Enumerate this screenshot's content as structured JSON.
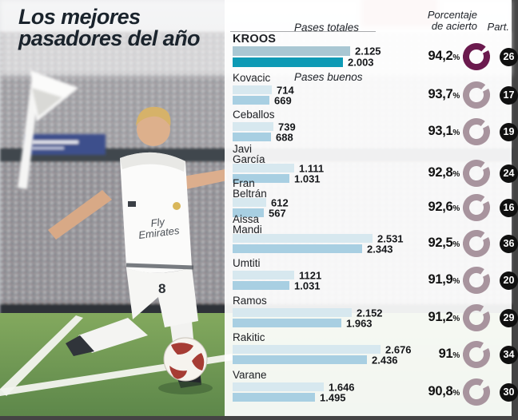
{
  "title": {
    "line1": "Los mejores",
    "line2": "pasadores del año"
  },
  "headers": {
    "pases_totales": "Pases totales",
    "pases_buenos": "Pases buenos",
    "porcentaje_line1": "Porcentaje",
    "porcentaje_line2": "de acierto",
    "part": "Part."
  },
  "photo": {
    "player_number": "8",
    "shirt_sponsor_line1": "Fly",
    "shirt_sponsor_line2": "Emirates"
  },
  "colors": {
    "bar_total_highlight": "#a9c7d3",
    "bar_good_highlight": "#0d9ab5",
    "bar_total": "#d7e8ef",
    "bar_good": "#a8cfe2",
    "ring_highlight": "#6b1a4e",
    "ring_normal": "#a8949e",
    "part_badge": "#101010",
    "title_text": "#1a232c"
  },
  "chart_data": {
    "type": "bar",
    "title": "Los mejores pasadores del año",
    "series_labels": [
      "Pases totales",
      "Pases buenos"
    ],
    "pct_header": "Porcentaje de acierto",
    "part_header": "Part.",
    "xlim": [
      0,
      2700
    ],
    "players": [
      {
        "name_lines": [
          "KROOS"
        ],
        "totales": 2125,
        "buenos": 2003,
        "totales_label": "2.125",
        "buenos_label": "2.003",
        "pct": 94.2,
        "pct_label": "94,2",
        "part": "26",
        "highlight": true
      },
      {
        "name_lines": [
          "Kovacic"
        ],
        "totales": 714,
        "buenos": 669,
        "totales_label": "714",
        "buenos_label": "669",
        "pct": 93.7,
        "pct_label": "93,7",
        "part": "17",
        "highlight": false
      },
      {
        "name_lines": [
          "Ceballos"
        ],
        "totales": 739,
        "buenos": 688,
        "totales_label": "739",
        "buenos_label": "688",
        "pct": 93.1,
        "pct_label": "93,1",
        "part": "19",
        "highlight": false
      },
      {
        "name_lines": [
          "Javi",
          "García"
        ],
        "totales": 1111,
        "buenos": 1031,
        "totales_label": "1.111",
        "buenos_label": "1.031",
        "pct": 92.8,
        "pct_label": "92,8",
        "part": "24",
        "highlight": false
      },
      {
        "name_lines": [
          "Fran",
          "Beltrán"
        ],
        "totales": 612,
        "buenos": 567,
        "totales_label": "612",
        "buenos_label": "567",
        "pct": 92.6,
        "pct_label": "92,6",
        "part": "16",
        "highlight": false
      },
      {
        "name_lines": [
          "Aissa",
          "Mandi"
        ],
        "totales": 2531,
        "buenos": 2343,
        "totales_label": "2.531",
        "buenos_label": "2.343",
        "pct": 92.5,
        "pct_label": "92,5",
        "part": "36",
        "highlight": false
      },
      {
        "name_lines": [
          "Umtiti"
        ],
        "totales": 1121,
        "buenos": 1031,
        "totales_label": "1121",
        "buenos_label": "1.031",
        "pct": 91.9,
        "pct_label": "91,9",
        "part": "20",
        "highlight": false
      },
      {
        "name_lines": [
          "Ramos"
        ],
        "totales": 2152,
        "buenos": 1963,
        "totales_label": "2.152",
        "buenos_label": "1.963",
        "pct": 91.2,
        "pct_label": "91,2",
        "part": "29",
        "highlight": false
      },
      {
        "name_lines": [
          "Rakitic"
        ],
        "totales": 2676,
        "buenos": 2436,
        "totales_label": "2.676",
        "buenos_label": "2.436",
        "pct": 91.0,
        "pct_label": "91",
        "part": "34",
        "highlight": false
      },
      {
        "name_lines": [
          "Varane"
        ],
        "totales": 1646,
        "buenos": 1495,
        "totales_label": "1.646",
        "buenos_label": "1.495",
        "pct": 90.8,
        "pct_label": "90,8",
        "part": "30",
        "highlight": false
      }
    ]
  }
}
